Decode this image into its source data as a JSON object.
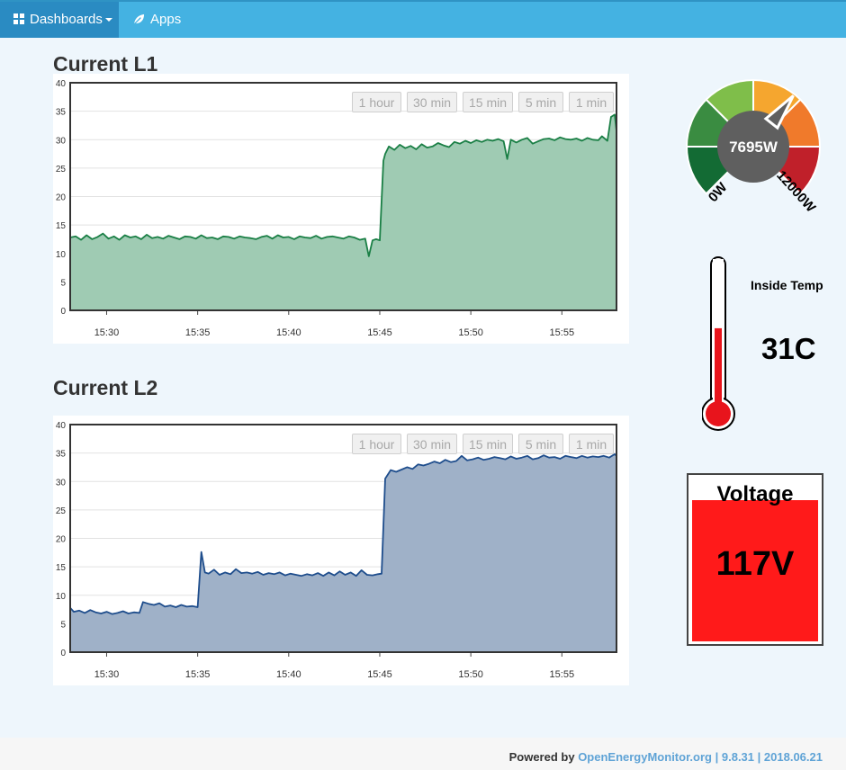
{
  "nav": {
    "dashboards": {
      "label": "Dashboards",
      "icon": "grid-icon"
    },
    "apps": {
      "label": "Apps",
      "icon": "leaf-icon"
    }
  },
  "range_buttons": [
    "1 hour",
    "30 min",
    "15 min",
    "5 min",
    "1 min"
  ],
  "charts": {
    "l1": {
      "title": "Current L1"
    },
    "l2": {
      "title": "Current L2"
    }
  },
  "chart_data": [
    {
      "type": "area",
      "title": "Current L1",
      "color": "#1a7f45",
      "fill": "#9fcbb3",
      "ylim": [
        0,
        40
      ],
      "yticks": [
        0,
        5,
        10,
        15,
        20,
        25,
        30,
        35,
        40
      ],
      "x_ticks": [
        "15:30",
        "15:35",
        "15:40",
        "15:45",
        "15:50",
        "15:55"
      ],
      "x_tick_minutes": [
        30,
        35,
        40,
        45,
        50,
        55
      ],
      "x_range_minutes": [
        28,
        58
      ],
      "x": [
        28,
        28.3,
        28.6,
        28.9,
        29.2,
        29.5,
        29.8,
        30.1,
        30.4,
        30.7,
        31,
        31.3,
        31.6,
        31.9,
        32.2,
        32.5,
        32.8,
        33.1,
        33.4,
        33.7,
        34,
        34.3,
        34.6,
        34.9,
        35.2,
        35.5,
        35.8,
        36.1,
        36.4,
        36.7,
        37,
        37.3,
        37.6,
        37.9,
        38.2,
        38.5,
        38.8,
        39.1,
        39.4,
        39.7,
        40,
        40.3,
        40.6,
        40.9,
        41.2,
        41.5,
        41.8,
        42.1,
        42.4,
        42.7,
        43,
        43.3,
        43.6,
        43.9,
        44.2,
        44.4,
        44.6,
        44.8,
        45,
        45.2,
        45.3,
        45.5,
        45.8,
        46.1,
        46.4,
        46.7,
        47,
        47.3,
        47.6,
        47.9,
        48.2,
        48.5,
        48.8,
        49.1,
        49.4,
        49.7,
        50,
        50.3,
        50.6,
        50.9,
        51.2,
        51.5,
        51.8,
        52,
        52.2,
        52.5,
        52.8,
        53.1,
        53.4,
        53.7,
        54,
        54.3,
        54.6,
        54.9,
        55.2,
        55.5,
        55.8,
        56.1,
        56.4,
        56.7,
        57,
        57.2,
        57.5,
        57.7,
        57.9,
        58
      ],
      "y": [
        12.8,
        13,
        12.4,
        13.2,
        12.5,
        12.9,
        13.5,
        12.6,
        13,
        12.4,
        13.2,
        12.8,
        13,
        12.5,
        13.3,
        12.7,
        12.9,
        12.6,
        13.1,
        12.8,
        12.5,
        13,
        12.9,
        12.6,
        13.2,
        12.7,
        12.8,
        12.5,
        13,
        12.9,
        12.6,
        13,
        12.8,
        12.7,
        12.5,
        12.9,
        13.1,
        12.6,
        13.2,
        12.8,
        12.9,
        12.5,
        13,
        12.8,
        12.7,
        13.1,
        12.6,
        12.9,
        13,
        12.8,
        12.6,
        13,
        12.8,
        12.4,
        12.6,
        9.5,
        12.3,
        12.5,
        12.3,
        26.3,
        27.5,
        28.8,
        28.2,
        29.1,
        28.5,
        28.9,
        28.3,
        29.2,
        28.6,
        28.8,
        29.4,
        29,
        28.7,
        29.6,
        29.3,
        29.8,
        29.4,
        29.9,
        29.6,
        30,
        29.8,
        30.1,
        29.7,
        26.6,
        30,
        29.5,
        30,
        30.3,
        29.3,
        29.7,
        30.1,
        30.2,
        29.9,
        30.4,
        30.1,
        30,
        30.2,
        29.8,
        30.3,
        30,
        29.9,
        30.6,
        29.8,
        34,
        34.4,
        31.5
      ]
    },
    {
      "type": "area",
      "title": "Current L2",
      "color": "#1e4d8c",
      "fill": "#9fb1c8",
      "ylim": [
        0,
        40
      ],
      "yticks": [
        0,
        5,
        10,
        15,
        20,
        25,
        30,
        35,
        40
      ],
      "x_ticks": [
        "15:30",
        "15:35",
        "15:40",
        "15:45",
        "15:50",
        "15:55"
      ],
      "x_tick_minutes": [
        30,
        35,
        40,
        45,
        50,
        55
      ],
      "x_range_minutes": [
        28,
        58
      ],
      "x": [
        28,
        28.2,
        28.5,
        28.8,
        29.1,
        29.4,
        29.7,
        30,
        30.3,
        30.6,
        30.9,
        31.2,
        31.5,
        31.8,
        32,
        32.3,
        32.6,
        32.9,
        33.2,
        33.5,
        33.8,
        34.1,
        34.4,
        34.7,
        35,
        35.2,
        35.4,
        35.6,
        35.9,
        36.2,
        36.5,
        36.8,
        37.1,
        37.4,
        37.7,
        38,
        38.3,
        38.6,
        38.9,
        39.2,
        39.5,
        39.8,
        40.1,
        40.4,
        40.7,
        41,
        41.3,
        41.6,
        41.9,
        42.2,
        42.5,
        42.8,
        43.1,
        43.4,
        43.7,
        44,
        44.3,
        44.6,
        44.9,
        45.1,
        45.3,
        45.6,
        45.9,
        46.2,
        46.5,
        46.8,
        47.1,
        47.4,
        47.7,
        48,
        48.3,
        48.6,
        48.9,
        49.2,
        49.5,
        49.8,
        50.1,
        50.4,
        50.7,
        51,
        51.3,
        51.6,
        51.9,
        52.2,
        52.5,
        52.8,
        53.1,
        53.4,
        53.7,
        54,
        54.3,
        54.6,
        54.9,
        55.2,
        55.5,
        55.8,
        56.1,
        56.4,
        56.7,
        57,
        57.3,
        57.6,
        57.9,
        58
      ],
      "y": [
        7.8,
        7.1,
        7.3,
        6.9,
        7.4,
        7,
        6.8,
        7.1,
        6.7,
        6.9,
        7.2,
        6.8,
        7,
        6.9,
        8.8,
        8.5,
        8.3,
        8.6,
        8,
        8.2,
        7.9,
        8.3,
        8,
        8.1,
        7.9,
        17.6,
        14,
        13.8,
        14.5,
        13.6,
        14,
        13.7,
        14.6,
        13.9,
        14,
        13.8,
        14.1,
        13.6,
        13.9,
        13.7,
        14,
        13.5,
        13.8,
        13.6,
        13.4,
        13.7,
        13.5,
        13.9,
        13.4,
        14,
        13.5,
        14.2,
        13.6,
        14,
        13.4,
        14.4,
        13.6,
        13.5,
        13.7,
        13.8,
        30.5,
        32,
        31.7,
        32.1,
        32.5,
        32.2,
        33,
        32.8,
        33.1,
        33.5,
        33.2,
        33.8,
        33.4,
        33.6,
        34.5,
        33.7,
        33.9,
        34.2,
        33.8,
        34,
        34.3,
        34.1,
        33.9,
        34.4,
        34,
        34.2,
        34.5,
        33.9,
        34.1,
        34.6,
        34.2,
        34.3,
        34,
        34.5,
        34.3,
        34.1,
        34.5,
        34.2,
        34.4,
        34.3,
        34.5,
        34.2,
        34.8,
        34.5
      ]
    }
  ],
  "gauge": {
    "value_label": "7695W",
    "min_label": "0W",
    "max_label": "12000W",
    "value": 7695,
    "min": 0,
    "max": 12000,
    "segment_colors": [
      "#136b34",
      "#3a8c41",
      "#7fbe4a",
      "#f5a62f",
      "#f07a2b",
      "#c0202a"
    ],
    "needle_color": "#5f5f5f"
  },
  "temperature": {
    "title": "Inside Temp",
    "value": "31C",
    "level": 0.55,
    "color": "#e8141c"
  },
  "voltage": {
    "title": "Voltage",
    "value": "117V",
    "color": "#ff1a1a"
  },
  "footer": {
    "prefix": "Powered by",
    "link": "OpenEnergyMonitor.org",
    "sep1": "|",
    "version": "9.8.31",
    "sep2": "|",
    "date": "2018.06.21"
  }
}
